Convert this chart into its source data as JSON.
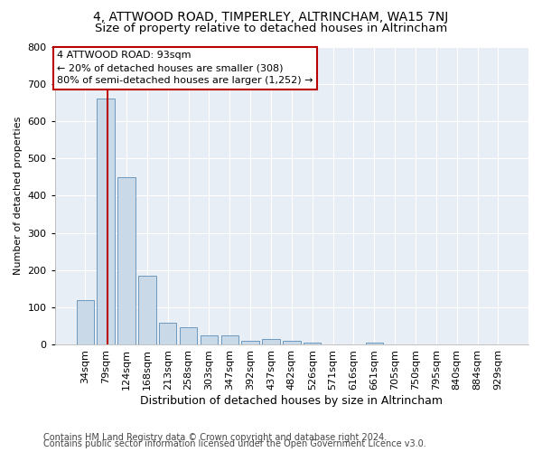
{
  "title1": "4, ATTWOOD ROAD, TIMPERLEY, ALTRINCHAM, WA15 7NJ",
  "title2": "Size of property relative to detached houses in Altrincham",
  "xlabel": "Distribution of detached houses by size in Altrincham",
  "ylabel": "Number of detached properties",
  "categories": [
    "34sqm",
    "79sqm",
    "124sqm",
    "168sqm",
    "213sqm",
    "258sqm",
    "303sqm",
    "347sqm",
    "392sqm",
    "437sqm",
    "482sqm",
    "526sqm",
    "571sqm",
    "616sqm",
    "661sqm",
    "705sqm",
    "750sqm",
    "795sqm",
    "840sqm",
    "884sqm",
    "929sqm"
  ],
  "values": [
    120,
    660,
    450,
    185,
    60,
    48,
    25,
    25,
    12,
    15,
    10,
    6,
    0,
    0,
    6,
    0,
    0,
    0,
    0,
    0,
    0
  ],
  "bar_color": "#c9d9e8",
  "bar_edge_color": "#5b8db8",
  "vline_color": "#bb0000",
  "vline_x_bar_index": 1,
  "annotation_text": "4 ATTWOOD ROAD: 93sqm\n← 20% of detached houses are smaller (308)\n80% of semi-detached houses are larger (1,252) →",
  "annotation_box_facecolor": "#ffffff",
  "annotation_box_edgecolor": "#bb0000",
  "ylim": [
    0,
    800
  ],
  "yticks": [
    0,
    100,
    200,
    300,
    400,
    500,
    600,
    700,
    800
  ],
  "background_color": "#e8eef5",
  "grid_color": "#ffffff",
  "footer1": "Contains HM Land Registry data © Crown copyright and database right 2024.",
  "footer2": "Contains public sector information licensed under the Open Government Licence v3.0.",
  "title1_fontsize": 10,
  "title2_fontsize": 9.5,
  "xlabel_fontsize": 9,
  "ylabel_fontsize": 8,
  "tick_fontsize": 8,
  "annotation_fontsize": 8,
  "footer_fontsize": 7
}
